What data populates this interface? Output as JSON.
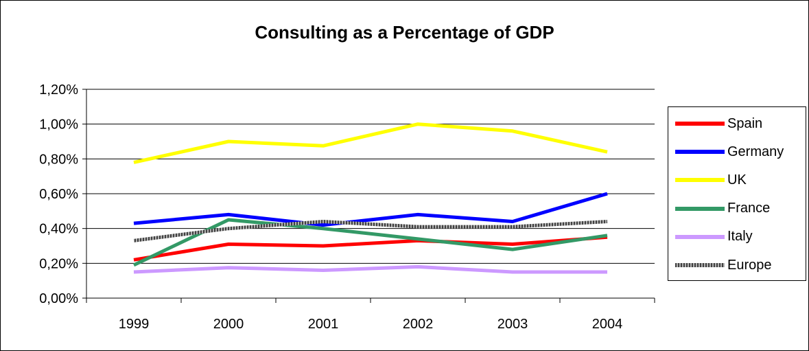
{
  "chart_data": {
    "type": "line",
    "title": "Consulting as a Percentage of GDP",
    "xlabel": "",
    "ylabel": "",
    "categories": [
      "1999",
      "2000",
      "2001",
      "2002",
      "2003",
      "2004"
    ],
    "ylim": [
      0,
      1.2
    ],
    "yticks": [
      0,
      0.2,
      0.4,
      0.6,
      0.8,
      1.0,
      1.2
    ],
    "ytick_labels": [
      "0,00%",
      "0,20%",
      "0,40%",
      "0,60%",
      "0,80%",
      "1,00%",
      "1,20%"
    ],
    "grid": true,
    "legend_position": "right",
    "series": [
      {
        "name": "Spain",
        "color": "#ff0000",
        "style": "solid",
        "values": [
          0.22,
          0.31,
          0.3,
          0.33,
          0.31,
          0.35
        ]
      },
      {
        "name": "Germany",
        "color": "#0000ff",
        "style": "solid",
        "values": [
          0.43,
          0.48,
          0.42,
          0.48,
          0.44,
          0.6
        ]
      },
      {
        "name": "UK",
        "color": "#ffff00",
        "style": "solid",
        "values": [
          0.78,
          0.9,
          0.875,
          1.0,
          0.96,
          0.84
        ]
      },
      {
        "name": "France",
        "color": "#339966",
        "style": "solid",
        "values": [
          0.19,
          0.45,
          0.4,
          0.34,
          0.28,
          0.36
        ]
      },
      {
        "name": "Italy",
        "color": "#cc99ff",
        "style": "solid",
        "values": [
          0.15,
          0.175,
          0.16,
          0.18,
          0.15,
          0.15
        ]
      },
      {
        "name": "Europe",
        "color": "#808080",
        "style": "hatched",
        "values": [
          0.33,
          0.4,
          0.44,
          0.41,
          0.41,
          0.44
        ]
      }
    ]
  }
}
